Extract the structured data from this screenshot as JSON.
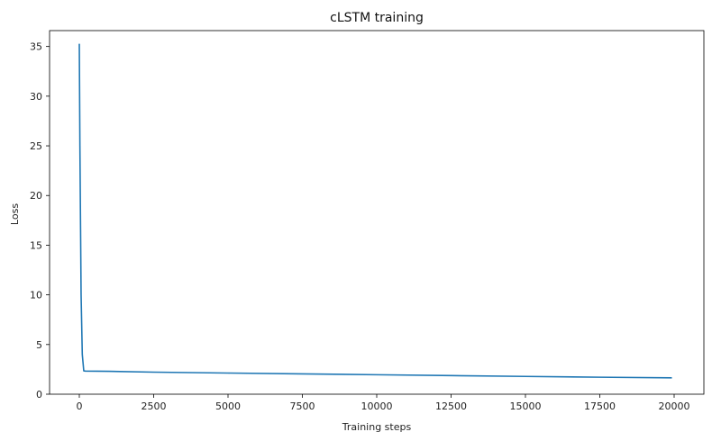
{
  "chart_data": {
    "type": "line",
    "title": "cLSTM training",
    "xlabel": "Training steps",
    "ylabel": "Loss",
    "xlim": [
      -1000,
      21000
    ],
    "ylim": [
      0,
      36.6
    ],
    "xticks": [
      0,
      2500,
      5000,
      7500,
      10000,
      12500,
      15000,
      17500,
      20000
    ],
    "yticks": [
      0,
      5,
      10,
      15,
      20,
      25,
      30,
      35
    ],
    "grid": false,
    "series": [
      {
        "color": "#1f77b4",
        "x": [
          0,
          20,
          60,
          100,
          150,
          200,
          1000,
          2500,
          5000,
          7500,
          10000,
          12500,
          15000,
          17500,
          19900
        ],
        "y": [
          35.2,
          25.0,
          10.0,
          4.0,
          2.35,
          2.33,
          2.3,
          2.22,
          2.13,
          2.04,
          1.96,
          1.87,
          1.79,
          1.71,
          1.65
        ]
      }
    ]
  }
}
